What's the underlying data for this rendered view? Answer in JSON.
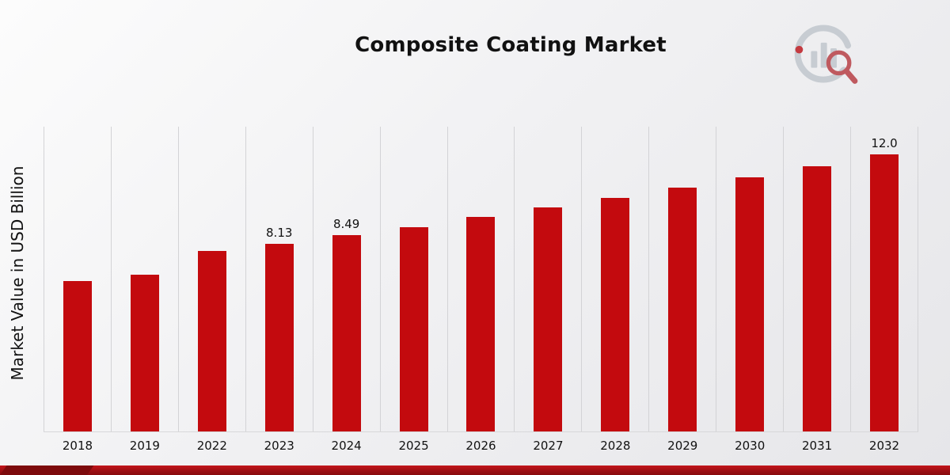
{
  "title": "Composite Coating Market",
  "ylabel": "Market Value in USD Billion",
  "icons": {
    "logo": "bar-chart-magnifier-logo"
  },
  "colors": {
    "bar": "#C30A0E",
    "footer_accent": "#9A0E12",
    "gridline": "#D3D3D6",
    "text": "#111111"
  },
  "chart_data": {
    "type": "bar",
    "title": "Composite Coating Market",
    "xlabel": "",
    "ylabel": "Market Value in USD Billion",
    "categories": [
      "2018",
      "2019",
      "2022",
      "2023",
      "2024",
      "2025",
      "2026",
      "2027",
      "2028",
      "2029",
      "2030",
      "2031",
      "2032"
    ],
    "values": [
      6.5,
      6.8,
      7.8,
      8.13,
      8.49,
      8.85,
      9.3,
      9.7,
      10.1,
      10.55,
      11.0,
      11.5,
      12.0
    ],
    "labeled_points": {
      "2023": "8.13",
      "2024": "8.49",
      "2032": "12.0"
    },
    "bar_color": "#C30A0E",
    "ylim": [
      0,
      13.2
    ],
    "grid": "vertical-between-categories",
    "legend": "none"
  }
}
